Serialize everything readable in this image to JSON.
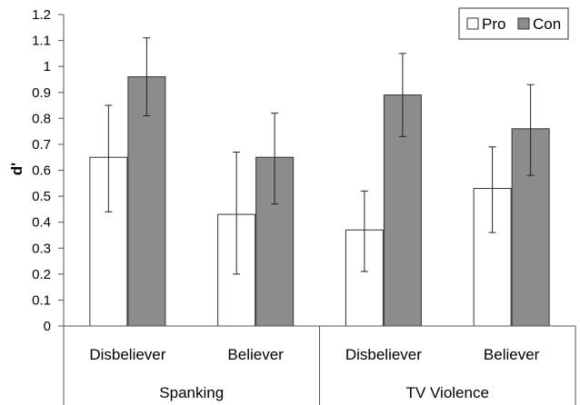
{
  "chart_data": {
    "type": "bar",
    "ylabel": "d'",
    "ylim": [
      0,
      1.2
    ],
    "yticks": [
      "0",
      "0.1",
      "0.2",
      "0.3",
      "0.4",
      "0.5",
      "0.6",
      "0.7",
      "0.8",
      "0.9",
      "1",
      "1.1",
      "1.2"
    ],
    "categories": [
      "Disbeliever",
      "Believer",
      "Disbeliever",
      "Believer"
    ],
    "groups": [
      {
        "label": "Spanking",
        "categories": [
          0,
          1
        ]
      },
      {
        "label": "TV Violence",
        "categories": [
          2,
          3
        ]
      }
    ],
    "series": [
      {
        "name": "Pro",
        "color": "#ffffff",
        "values": [
          0.65,
          0.43,
          0.37,
          0.53
        ],
        "error_low": [
          0.44,
          0.2,
          0.21,
          0.36
        ],
        "error_high": [
          0.85,
          0.67,
          0.52,
          0.69
        ]
      },
      {
        "name": "Con",
        "color": "#8c8c8c",
        "values": [
          0.96,
          0.65,
          0.89,
          0.76
        ],
        "error_low": [
          0.81,
          0.47,
          0.73,
          0.58
        ],
        "error_high": [
          1.11,
          0.82,
          1.05,
          0.93
        ]
      }
    ],
    "legend_position": "top-right",
    "grid": false
  }
}
